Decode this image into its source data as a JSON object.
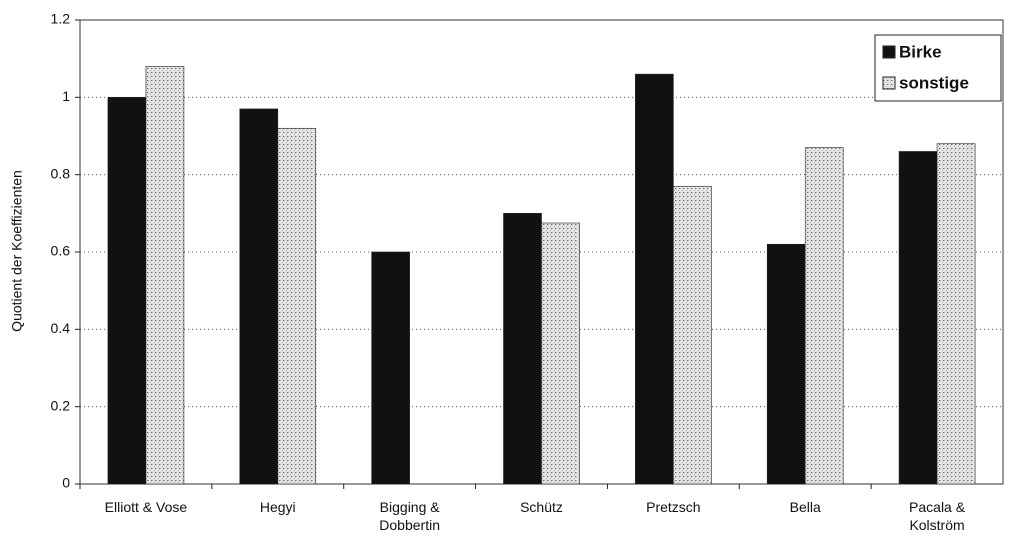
{
  "chart_data": {
    "type": "bar",
    "y_label": "Quotient der Koeffizienten",
    "categories": [
      "Elliott & Vose",
      "Hegyi",
      "Bigging &\nDobbertin",
      "Schütz",
      "Pretzsch",
      "Bella",
      "Pacala &\nKolström"
    ],
    "series": [
      {
        "name": "Birke",
        "color": "#111111",
        "values": [
          1.0,
          0.97,
          0.6,
          0.7,
          1.06,
          0.62,
          0.86
        ]
      },
      {
        "name": "sonstige",
        "color": "#a8a8a8",
        "values": [
          1.08,
          0.92,
          null,
          0.675,
          0.77,
          0.87,
          0.88
        ]
      }
    ],
    "ylim": [
      0,
      1.2
    ],
    "yticks": [
      0,
      0.2,
      0.4,
      0.6,
      0.8,
      1,
      1.2
    ],
    "grid": true,
    "legend": "top-right"
  }
}
